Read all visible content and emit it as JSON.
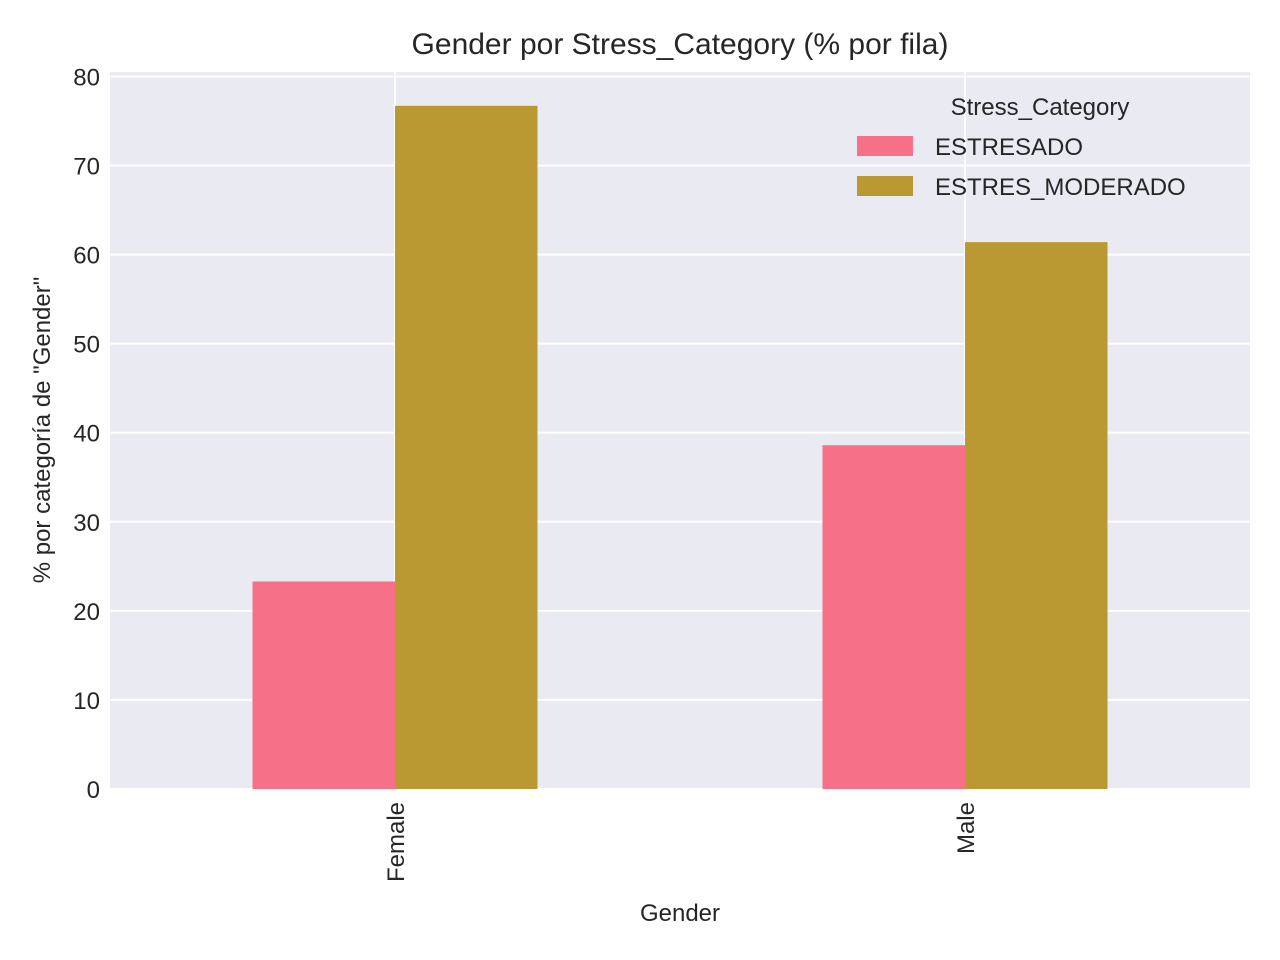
{
  "chart_data": {
    "type": "bar",
    "title": "Gender por Stress_Category (% por fila)",
    "xlabel": "Gender",
    "ylabel": "% por categoría de \"Gender\"",
    "categories": [
      "Female",
      "Male"
    ],
    "series": [
      {
        "name": "ESTRESADO",
        "values": [
          23.3,
          38.6
        ],
        "color": "#f67088"
      },
      {
        "name": "ESTRES_MODERADO",
        "values": [
          76.7,
          61.4
        ],
        "color": "#ba9832"
      }
    ],
    "ylim": [
      0,
      80.5
    ],
    "yticks": [
      0,
      10,
      20,
      30,
      40,
      50,
      60,
      70,
      80
    ],
    "grid": true,
    "legend": {
      "title": "Stress_Category",
      "placement": "top-right"
    },
    "background": "#eaeaf2",
    "grid_color": "#ffffff"
  }
}
